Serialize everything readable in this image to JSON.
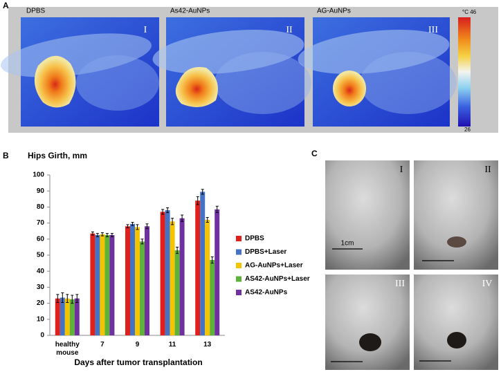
{
  "panels": {
    "a": "A",
    "b": "B",
    "c": "C"
  },
  "thermal": {
    "images": [
      {
        "label": "DPBS",
        "numeral": "I"
      },
      {
        "label": "As42-AuNPs",
        "numeral": "II"
      },
      {
        "label": "AG-AuNPs",
        "numeral": "III"
      }
    ],
    "colorbar": {
      "max_label": "°C 46",
      "min_label": "26"
    }
  },
  "photos": {
    "numerals": [
      "I",
      "II",
      "III",
      "IV"
    ],
    "scale_label": "1cm"
  },
  "chart_data": {
    "type": "bar",
    "title": "Hips Girth, mm",
    "xlabel": "Days after tumor transplantation",
    "categories": [
      "healthy mouse",
      "7",
      "9",
      "11",
      "13"
    ],
    "series": [
      {
        "name": "DPBS",
        "color": "#e0201b",
        "values": [
          23,
          63.5,
          68,
          77,
          84
        ],
        "errors": [
          2.5,
          1,
          1,
          1.5,
          2.5
        ]
      },
      {
        "name": "DPBS+Laser",
        "color": "#4472c4",
        "values": [
          23.5,
          62.5,
          69.5,
          78,
          89.5
        ],
        "errors": [
          3,
          1,
          1,
          1.5,
          1.5
        ]
      },
      {
        "name": "AG-AuNPs+Laser",
        "color": "#f5c400",
        "values": [
          23,
          63,
          67.5,
          71,
          72
        ],
        "errors": [
          2.5,
          1,
          1.5,
          2,
          1.5
        ]
      },
      {
        "name": "AS42-AuNPs+Laser",
        "color": "#5db33a",
        "values": [
          22.5,
          62.5,
          58.5,
          53,
          47
        ],
        "errors": [
          2.5,
          1,
          1.5,
          2,
          2
        ]
      },
      {
        "name": "AS42-AuNPs",
        "color": "#7030a0",
        "values": [
          23,
          62.5,
          68,
          73,
          78.5
        ],
        "errors": [
          2.5,
          1,
          1.5,
          2,
          2
        ]
      }
    ],
    "ylim": [
      0,
      100
    ],
    "yticks": [
      0,
      10,
      20,
      30,
      40,
      50,
      60,
      70,
      80,
      90,
      100
    ],
    "legend": "right"
  }
}
